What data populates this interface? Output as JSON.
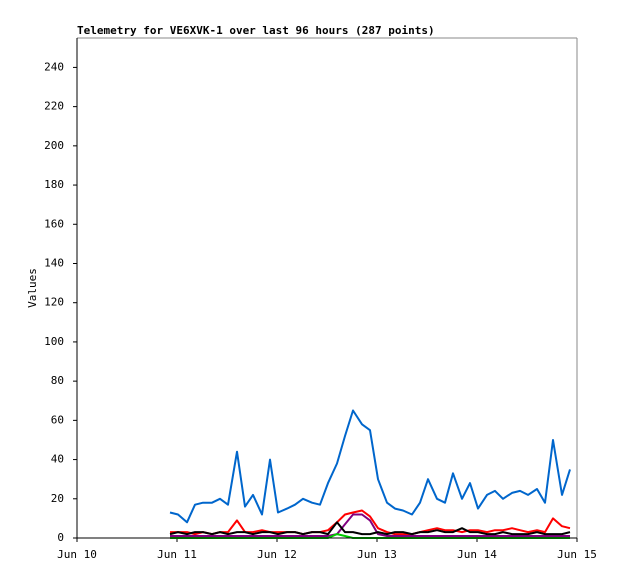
{
  "chart_data": {
    "type": "line",
    "title": "Telemetry for VE6XVK-1 over last 96 hours (287 points)",
    "y_label": "Values",
    "xlim": [
      10,
      15
    ],
    "xticks": [
      {
        "value": 10,
        "label": "Jun 10"
      },
      {
        "value": 11,
        "label": "Jun 11"
      },
      {
        "value": 12,
        "label": "Jun 12"
      },
      {
        "value": 13,
        "label": "Jun 13"
      },
      {
        "value": 14,
        "label": "Jun 14"
      },
      {
        "value": 15,
        "label": "Jun 15"
      }
    ],
    "ylim": [
      0,
      255
    ],
    "yticks": [
      0,
      20,
      40,
      60,
      80,
      100,
      120,
      140,
      160,
      180,
      200,
      220,
      240
    ],
    "x": [
      10.93,
      11.01,
      11.1,
      11.18,
      11.26,
      11.35,
      11.43,
      11.51,
      11.6,
      11.68,
      11.76,
      11.85,
      11.93,
      12.01,
      12.1,
      12.18,
      12.26,
      12.35,
      12.43,
      12.51,
      12.6,
      12.68,
      12.76,
      12.85,
      12.93,
      13.01,
      13.1,
      13.18,
      13.26,
      13.35,
      13.43,
      13.51,
      13.6,
      13.68,
      13.76,
      13.85,
      13.93,
      14.01,
      14.1,
      14.18,
      14.26,
      14.35,
      14.43,
      14.51,
      14.6,
      14.68,
      14.76,
      14.85,
      14.93
    ],
    "series": [
      {
        "color": "#0066cc",
        "values": [
          13,
          12,
          8,
          17,
          18,
          18,
          20,
          17,
          44,
          16,
          22,
          12,
          40,
          13,
          15,
          17,
          20,
          18,
          17,
          28,
          38,
          52,
          65,
          58,
          55,
          30,
          18,
          15,
          14,
          12,
          18,
          30,
          20,
          18,
          33,
          20,
          28,
          15,
          22,
          24,
          20,
          23,
          24,
          22,
          25,
          18,
          50,
          22,
          35
        ]
      },
      {
        "color": "#ff0000",
        "values": [
          3,
          3,
          3,
          2,
          3,
          2,
          3,
          3,
          9,
          3,
          3,
          4,
          3,
          3,
          3,
          3,
          2,
          3,
          3,
          4,
          8,
          12,
          13,
          14,
          11,
          5,
          3,
          2,
          2,
          2,
          3,
          4,
          5,
          4,
          4,
          3,
          4,
          4,
          3,
          4,
          4,
          5,
          4,
          3,
          4,
          3,
          10,
          6,
          5
        ]
      },
      {
        "color": "#800080",
        "values": [
          1,
          1,
          1,
          1,
          1,
          1,
          1,
          1,
          1,
          1,
          1,
          1,
          1,
          1,
          1,
          1,
          1,
          1,
          1,
          1,
          2,
          7,
          12,
          12,
          9,
          2,
          1,
          1,
          1,
          1,
          1,
          1,
          1,
          1,
          1,
          1,
          1,
          1,
          1,
          1,
          1,
          1,
          1,
          1,
          1,
          1,
          1,
          1,
          1
        ]
      },
      {
        "color": "#000000",
        "values": [
          2,
          3,
          2,
          3,
          3,
          2,
          3,
          2,
          3,
          3,
          2,
          3,
          3,
          2,
          3,
          3,
          2,
          3,
          3,
          2,
          8,
          3,
          3,
          2,
          2,
          3,
          2,
          3,
          3,
          2,
          3,
          3,
          4,
          3,
          3,
          5,
          3,
          3,
          2,
          2,
          3,
          2,
          2,
          2,
          3,
          2,
          2,
          2,
          3
        ]
      },
      {
        "color": "#00cc00",
        "values": [
          0,
          0,
          0,
          0,
          0,
          0,
          0,
          0,
          0,
          0,
          0,
          0,
          0,
          0,
          0,
          0,
          0,
          0,
          0,
          0,
          2,
          1,
          0,
          0,
          0,
          0,
          0,
          0,
          0,
          0,
          0,
          0,
          0,
          0,
          0,
          0,
          0,
          0,
          0,
          0,
          0,
          0,
          0,
          0,
          0,
          0,
          0,
          0,
          0
        ]
      }
    ]
  }
}
